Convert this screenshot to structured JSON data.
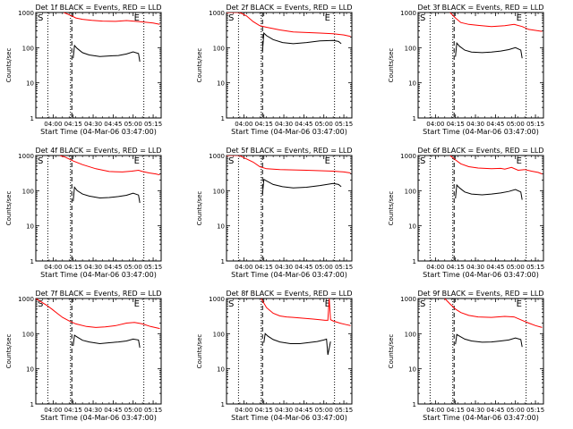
{
  "chart_data": [
    {
      "type": "line",
      "title": "Det 1f BLACK = Events, RED = LLD",
      "xlabel": "Start Time (04-Mar-06 03:47:00)",
      "ylabel": "Counts/sec",
      "yscale": "log",
      "ylim": [
        1,
        1000
      ],
      "yticks": [
        "1",
        "10",
        "100",
        "1000"
      ],
      "xlim": [
        0,
        94
      ],
      "xticks": [
        {
          "x": 13,
          "label": "04:00"
        },
        {
          "x": 28,
          "label": "04:15"
        },
        {
          "x": 43,
          "label": "04:30"
        },
        {
          "x": 58,
          "label": "04:45"
        },
        {
          "x": 73,
          "label": "05:00"
        },
        {
          "x": 88,
          "label": "05:15"
        }
      ],
      "markers": {
        "S_label": "S",
        "E_label": "E",
        "dotted_x": [
          9,
          26,
          81
        ],
        "dashed_x": [
          27
        ]
      },
      "series": [
        {
          "name": "LLD",
          "color": "#ff0000",
          "x": [
            21,
            27,
            30,
            35,
            42,
            50,
            60,
            68,
            75,
            80,
            88,
            93
          ],
          "y": [
            1000,
            800,
            700,
            640,
            600,
            570,
            560,
            590,
            560,
            540,
            500,
            460
          ]
        },
        {
          "name": "Events",
          "color": "#000000",
          "x": [
            28,
            29,
            31,
            35,
            40,
            48,
            55,
            62,
            68,
            73,
            77,
            78
          ],
          "y": [
            50,
            115,
            95,
            72,
            62,
            56,
            58,
            60,
            66,
            76,
            68,
            40
          ]
        }
      ]
    },
    {
      "type": "line",
      "title": "Det 2f BLACK = Events, RED = LLD",
      "xlabel": "Start Time (04-Mar-06 03:47:00)",
      "ylabel": "Counts/sec",
      "yscale": "log",
      "ylim": [
        1,
        1000
      ],
      "yticks": [
        "1",
        "10",
        "100",
        "1000"
      ],
      "xlim": [
        0,
        94
      ],
      "xticks": [
        {
          "x": 13,
          "label": "04:00"
        },
        {
          "x": 28,
          "label": "04:15"
        },
        {
          "x": 43,
          "label": "04:30"
        },
        {
          "x": 58,
          "label": "04:45"
        },
        {
          "x": 73,
          "label": "05:00"
        },
        {
          "x": 88,
          "label": "05:15"
        }
      ],
      "markers": {
        "S_label": "S",
        "E_label": "E",
        "dotted_x": [
          9,
          26,
          81
        ],
        "dashed_x": [
          27
        ]
      },
      "series": [
        {
          "name": "LLD",
          "color": "#ff0000",
          "x": [
            0,
            5,
            10,
            15,
            20,
            25,
            30,
            40,
            50,
            60,
            70,
            80,
            88,
            93
          ],
          "y": [
            1000,
            1000,
            1000,
            800,
            550,
            420,
            380,
            320,
            280,
            270,
            260,
            250,
            230,
            210
          ]
        },
        {
          "name": "Events",
          "color": "#000000",
          "x": [
            27,
            28,
            30,
            35,
            42,
            50,
            60,
            70,
            80,
            84,
            86
          ],
          "y": [
            80,
            260,
            220,
            170,
            140,
            130,
            140,
            155,
            160,
            150,
            130
          ]
        }
      ]
    },
    {
      "type": "line",
      "title": "Det 3f BLACK = Events, RED = LLD",
      "xlabel": "Start Time (04-Mar-06 03:47:00)",
      "ylabel": "Counts/sec",
      "yscale": "log",
      "ylim": [
        1,
        1000
      ],
      "yticks": [
        "1",
        "10",
        "100",
        "1000"
      ],
      "xlim": [
        0,
        94
      ],
      "xticks": [
        {
          "x": 13,
          "label": "04:00"
        },
        {
          "x": 28,
          "label": "04:15"
        },
        {
          "x": 43,
          "label": "04:30"
        },
        {
          "x": 58,
          "label": "04:45"
        },
        {
          "x": 73,
          "label": "05:00"
        },
        {
          "x": 88,
          "label": "05:15"
        }
      ],
      "markers": {
        "S_label": "S",
        "E_label": "E",
        "dotted_x": [
          9,
          26,
          81
        ],
        "dashed_x": [
          27
        ]
      },
      "series": [
        {
          "name": "LLD",
          "color": "#ff0000",
          "x": [
            24,
            28,
            32,
            38,
            45,
            55,
            65,
            72,
            78,
            83,
            88,
            93
          ],
          "y": [
            1000,
            700,
            520,
            460,
            430,
            400,
            420,
            460,
            400,
            330,
            310,
            290
          ]
        },
        {
          "name": "Events",
          "color": "#000000",
          "x": [
            28,
            29,
            31,
            35,
            40,
            48,
            55,
            62,
            68,
            73,
            77,
            78
          ],
          "y": [
            55,
            135,
            110,
            85,
            75,
            72,
            75,
            80,
            88,
            100,
            85,
            50
          ]
        }
      ]
    },
    {
      "type": "line",
      "title": "Det 4f BLACK = Events, RED = LLD",
      "xlabel": "Start Time (04-Mar-06 03:47:00)",
      "ylabel": "Counts/sec",
      "yscale": "log",
      "ylim": [
        1,
        1000
      ],
      "yticks": [
        "1",
        "10",
        "100",
        "1000"
      ],
      "xlim": [
        0,
        94
      ],
      "xticks": [
        {
          "x": 13,
          "label": "04:00"
        },
        {
          "x": 28,
          "label": "04:15"
        },
        {
          "x": 43,
          "label": "04:30"
        },
        {
          "x": 58,
          "label": "04:45"
        },
        {
          "x": 73,
          "label": "05:00"
        },
        {
          "x": 88,
          "label": "05:15"
        }
      ],
      "markers": {
        "S_label": "S",
        "E_label": "E",
        "dotted_x": [
          9,
          26,
          81
        ],
        "dashed_x": [
          27
        ]
      },
      "series": [
        {
          "name": "LLD",
          "color": "#ff0000",
          "x": [
            18,
            22,
            28,
            35,
            45,
            55,
            65,
            72,
            77,
            80,
            85,
            90,
            93
          ],
          "y": [
            1000,
            900,
            700,
            550,
            420,
            350,
            340,
            360,
            380,
            350,
            320,
            300,
            280
          ]
        },
        {
          "name": "Events",
          "color": "#000000",
          "x": [
            28,
            29,
            31,
            35,
            40,
            48,
            55,
            62,
            68,
            73,
            77,
            78
          ],
          "y": [
            50,
            125,
            100,
            80,
            70,
            62,
            64,
            68,
            74,
            85,
            75,
            45
          ]
        }
      ]
    },
    {
      "type": "line",
      "title": "Det 5f BLACK = Events, RED = LLD",
      "xlabel": "Start Time (04-Mar-06 03:47:00)",
      "ylabel": "Counts/sec",
      "yscale": "log",
      "ylim": [
        1,
        1000
      ],
      "yticks": [
        "1",
        "10",
        "100",
        "1000"
      ],
      "xlim": [
        0,
        94
      ],
      "xticks": [
        {
          "x": 13,
          "label": "04:00"
        },
        {
          "x": 28,
          "label": "04:15"
        },
        {
          "x": 43,
          "label": "04:30"
        },
        {
          "x": 58,
          "label": "04:45"
        },
        {
          "x": 73,
          "label": "05:00"
        },
        {
          "x": 88,
          "label": "05:15"
        }
      ],
      "markers": {
        "S_label": "S",
        "E_label": "E",
        "dotted_x": [
          9,
          26,
          81
        ],
        "dashed_x": [
          27
        ]
      },
      "series": [
        {
          "name": "LLD",
          "color": "#ff0000",
          "x": [
            0,
            5,
            10,
            12,
            15,
            20,
            25,
            30,
            40,
            50,
            60,
            70,
            80,
            88,
            93
          ],
          "y": [
            1000,
            1000,
            1000,
            900,
            800,
            650,
            480,
            420,
            400,
            390,
            380,
            370,
            360,
            340,
            320
          ]
        },
        {
          "name": "Events",
          "color": "#000000",
          "x": [
            27,
            28,
            30,
            35,
            42,
            50,
            60,
            70,
            80,
            84,
            86
          ],
          "y": [
            80,
            210,
            190,
            150,
            130,
            120,
            125,
            140,
            160,
            150,
            130
          ]
        }
      ]
    },
    {
      "type": "line",
      "title": "Det 6f BLACK = Events, RED = LLD",
      "xlabel": "Start Time (04-Mar-06 03:47:00)",
      "ylabel": "Counts/sec",
      "yscale": "log",
      "ylim": [
        1,
        1000
      ],
      "yticks": [
        "1",
        "10",
        "100",
        "1000"
      ],
      "xlim": [
        0,
        94
      ],
      "xticks": [
        {
          "x": 13,
          "label": "04:00"
        },
        {
          "x": 28,
          "label": "04:15"
        },
        {
          "x": 43,
          "label": "04:30"
        },
        {
          "x": 58,
          "label": "04:45"
        },
        {
          "x": 73,
          "label": "05:00"
        },
        {
          "x": 88,
          "label": "05:15"
        }
      ],
      "markers": {
        "S_label": "S",
        "E_label": "E",
        "dotted_x": [
          9,
          26,
          81
        ],
        "dashed_x": [
          27
        ]
      },
      "series": [
        {
          "name": "LLD",
          "color": "#ff0000",
          "x": [
            24,
            28,
            32,
            38,
            45,
            55,
            62,
            65,
            70,
            75,
            80,
            85,
            90,
            93
          ],
          "y": [
            1000,
            750,
            580,
            480,
            440,
            420,
            430,
            410,
            460,
            380,
            400,
            360,
            330,
            300
          ]
        },
        {
          "name": "Events",
          "color": "#000000",
          "x": [
            28,
            29,
            31,
            35,
            40,
            48,
            55,
            62,
            68,
            73,
            77,
            78
          ],
          "y": [
            60,
            145,
            120,
            92,
            80,
            76,
            80,
            86,
            95,
            108,
            92,
            55
          ]
        }
      ]
    },
    {
      "type": "line",
      "title": "Det 7f BLACK = Events, RED = LLD",
      "xlabel": "Start Time (04-Mar-06 03:47:00)",
      "ylabel": "Counts/sec",
      "yscale": "log",
      "ylim": [
        1,
        1000
      ],
      "yticks": [
        "1",
        "10",
        "100",
        "1000"
      ],
      "xlim": [
        0,
        94
      ],
      "xticks": [
        {
          "x": 13,
          "label": "04:00"
        },
        {
          "x": 28,
          "label": "04:15"
        },
        {
          "x": 43,
          "label": "04:30"
        },
        {
          "x": 58,
          "label": "04:45"
        },
        {
          "x": 73,
          "label": "05:00"
        },
        {
          "x": 88,
          "label": "05:15"
        }
      ],
      "markers": {
        "S_label": "S",
        "E_label": "E",
        "dotted_x": [
          9,
          26,
          81
        ],
        "dashed_x": [
          27
        ]
      },
      "series": [
        {
          "name": "LLD",
          "color": "#ff0000",
          "x": [
            0,
            4,
            8,
            12,
            16,
            20,
            25,
            30,
            38,
            45,
            52,
            60,
            68,
            74,
            80,
            86,
            93
          ],
          "y": [
            1000,
            800,
            650,
            500,
            380,
            290,
            230,
            190,
            160,
            150,
            155,
            170,
            200,
            210,
            190,
            160,
            140
          ]
        },
        {
          "name": "Events",
          "color": "#000000",
          "x": [
            28,
            29,
            31,
            35,
            40,
            48,
            55,
            62,
            68,
            73,
            77,
            78
          ],
          "y": [
            45,
            90,
            80,
            65,
            58,
            52,
            55,
            58,
            62,
            70,
            66,
            40
          ]
        }
      ]
    },
    {
      "type": "line",
      "title": "Det 8f BLACK = Events, RED = LLD",
      "xlabel": "Start Time (04-Mar-06 03:47:00)",
      "ylabel": "Counts/sec",
      "yscale": "log",
      "ylim": [
        1,
        1000
      ],
      "yticks": [
        "1",
        "10",
        "100",
        "1000"
      ],
      "xlim": [
        0,
        94
      ],
      "xticks": [
        {
          "x": 13,
          "label": "04:00"
        },
        {
          "x": 28,
          "label": "04:15"
        },
        {
          "x": 43,
          "label": "04:30"
        },
        {
          "x": 58,
          "label": "04:45"
        },
        {
          "x": 73,
          "label": "05:00"
        },
        {
          "x": 88,
          "label": "05:15"
        }
      ],
      "markers": {
        "S_label": "S",
        "E_label": "E",
        "dotted_x": [
          9,
          26,
          81
        ],
        "dashed_x": [
          27
        ]
      },
      "series": [
        {
          "name": "LLD",
          "color": "#ff0000",
          "x": [
            26,
            30,
            35,
            40,
            45,
            50,
            55,
            60,
            65,
            70,
            74,
            76,
            77,
            78,
            80,
            85,
            90,
            93
          ],
          "y": [
            1000,
            550,
            380,
            320,
            300,
            290,
            280,
            270,
            260,
            250,
            240,
            240,
            1000,
            250,
            230,
            200,
            180,
            170
          ]
        },
        {
          "name": "Events",
          "color": "#000000",
          "x": [
            28,
            29,
            31,
            35,
            40,
            48,
            55,
            62,
            68,
            73,
            75,
            76,
            78
          ],
          "y": [
            55,
            100,
            85,
            68,
            58,
            52,
            52,
            56,
            60,
            66,
            70,
            25,
            60
          ]
        }
      ]
    },
    {
      "type": "line",
      "title": "Det 9f BLACK = Events, RED = LLD",
      "xlabel": "Start Time (04-Mar-06 03:47:00)",
      "ylabel": "Counts/sec",
      "yscale": "log",
      "ylim": [
        1,
        1000
      ],
      "yticks": [
        "1",
        "10",
        "100",
        "1000"
      ],
      "xlim": [
        0,
        94
      ],
      "xticks": [
        {
          "x": 13,
          "label": "04:00"
        },
        {
          "x": 28,
          "label": "04:15"
        },
        {
          "x": 43,
          "label": "04:30"
        },
        {
          "x": 58,
          "label": "04:45"
        },
        {
          "x": 73,
          "label": "05:00"
        },
        {
          "x": 88,
          "label": "05:15"
        }
      ],
      "markers": {
        "S_label": "S",
        "E_label": "E",
        "dotted_x": [
          9,
          26,
          81
        ],
        "dashed_x": [
          27
        ]
      },
      "series": [
        {
          "name": "LLD",
          "color": "#ff0000",
          "x": [
            20,
            24,
            28,
            32,
            38,
            45,
            55,
            65,
            72,
            78,
            83,
            88,
            93
          ],
          "y": [
            1000,
            700,
            500,
            400,
            330,
            300,
            290,
            310,
            300,
            240,
            200,
            170,
            150
          ]
        },
        {
          "name": "Events",
          "color": "#000000",
          "x": [
            28,
            29,
            31,
            35,
            40,
            48,
            55,
            62,
            68,
            73,
            77,
            78
          ],
          "y": [
            50,
            95,
            85,
            70,
            62,
            57,
            58,
            62,
            66,
            75,
            68,
            42
          ]
        }
      ]
    }
  ]
}
